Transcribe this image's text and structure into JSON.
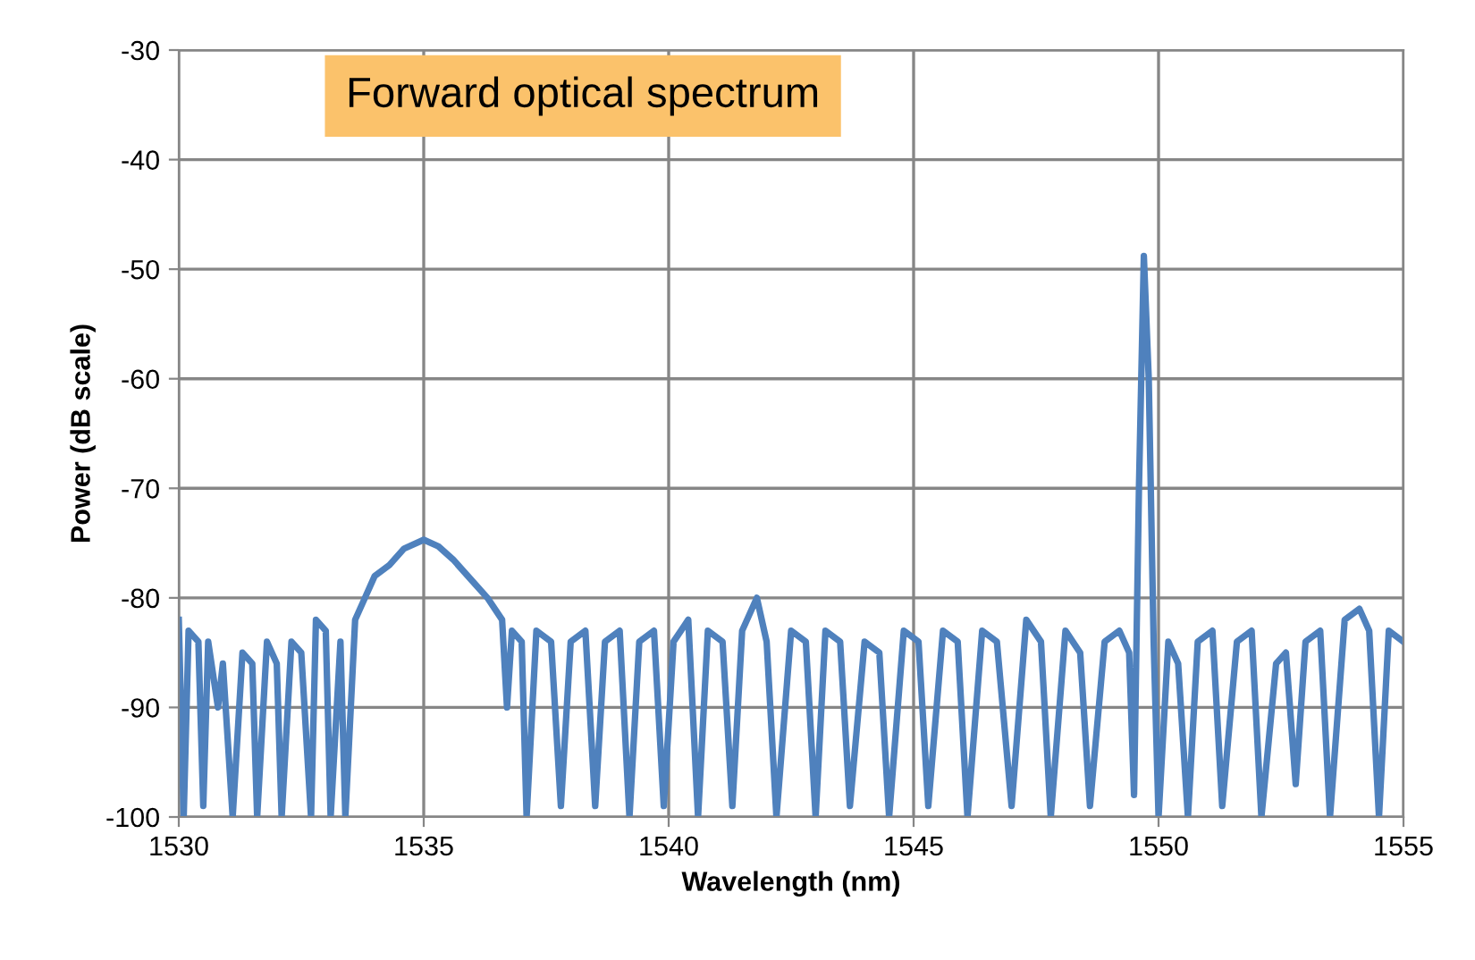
{
  "chart_data": {
    "type": "line",
    "title": "Forward optical spectrum",
    "xlabel": "Wavelength (nm)",
    "ylabel": "Power (dB scale)",
    "x": [
      1530,
      1530.1,
      1530.2,
      1530.4,
      1530.5,
      1530.6,
      1530.8,
      1530.9,
      1531.1,
      1531.3,
      1531.5,
      1531.6,
      1531.8,
      1532.0,
      1532.1,
      1532.3,
      1532.5,
      1532.7,
      1532.8,
      1533.0,
      1533.1,
      1533.3,
      1533.4,
      1533.6,
      1533.8,
      1534.0,
      1534.3,
      1534.6,
      1535.0,
      1535.3,
      1535.6,
      1536.0,
      1536.3,
      1536.6,
      1536.7,
      1536.8,
      1537.0,
      1537.1,
      1537.3,
      1537.6,
      1537.8,
      1538.0,
      1538.3,
      1538.5,
      1538.7,
      1539.0,
      1539.2,
      1539.4,
      1539.7,
      1539.9,
      1540.1,
      1540.4,
      1540.6,
      1540.8,
      1541.1,
      1541.3,
      1541.5,
      1541.8,
      1542.0,
      1542.2,
      1542.5,
      1542.8,
      1543.0,
      1543.2,
      1543.5,
      1543.7,
      1544.0,
      1544.3,
      1544.5,
      1544.8,
      1545.1,
      1545.3,
      1545.6,
      1545.9,
      1546.1,
      1546.4,
      1546.7,
      1547.0,
      1547.3,
      1547.6,
      1547.8,
      1548.1,
      1548.4,
      1548.6,
      1548.9,
      1549.2,
      1549.4,
      1549.5,
      1549.6,
      1549.7,
      1549.8,
      1549.9,
      1550.0,
      1550.2,
      1550.4,
      1550.6,
      1550.8,
      1551.1,
      1551.3,
      1551.6,
      1551.9,
      1552.1,
      1552.4,
      1552.6,
      1552.8,
      1553.0,
      1553.3,
      1553.5,
      1553.8,
      1554.1,
      1554.3,
      1554.5,
      1554.7,
      1555
    ],
    "series": [
      {
        "color": "#4f81bd",
        "values": [
          -82,
          -100,
          -83,
          -84,
          -99,
          -84,
          -90,
          -86,
          -100,
          -85,
          -86,
          -100,
          -84,
          -86,
          -100,
          -84,
          -85,
          -100,
          -82,
          -83,
          -100,
          -84,
          -100,
          -82,
          -80,
          -78,
          -77,
          -75.5,
          -74.7,
          -75.3,
          -76.5,
          -78.5,
          -80,
          -82,
          -90,
          -83,
          -84,
          -100,
          -83,
          -84,
          -99,
          -84,
          -83,
          -99,
          -84,
          -83,
          -100,
          -84,
          -83,
          -99,
          -84,
          -82,
          -100,
          -83,
          -84,
          -99,
          -83,
          -80,
          -84,
          -100,
          -83,
          -84,
          -100,
          -83,
          -84,
          -99,
          -84,
          -85,
          -100,
          -83,
          -84,
          -99,
          -83,
          -84,
          -100,
          -83,
          -84,
          -99,
          -82,
          -84,
          -100,
          -83,
          -85,
          -99,
          -84,
          -83,
          -85,
          -98,
          -70,
          -48.8,
          -60,
          -84,
          -100,
          -84,
          -86,
          -100,
          -84,
          -83,
          -99,
          -84,
          -83,
          -100,
          -86,
          -85,
          -97,
          -84,
          -83,
          -100,
          -82,
          -81,
          -83,
          -100,
          -83,
          -84
        ]
      }
    ],
    "xlim": [
      1530,
      1555
    ],
    "xticks": [
      1530,
      1535,
      1540,
      1545,
      1550,
      1555
    ],
    "ylim": [
      -100,
      -30
    ],
    "yticks": [
      -100,
      -90,
      -80,
      -70,
      -60,
      -50,
      -40,
      -30
    ],
    "grid": true,
    "marker": "none",
    "line_style": "solid"
  }
}
